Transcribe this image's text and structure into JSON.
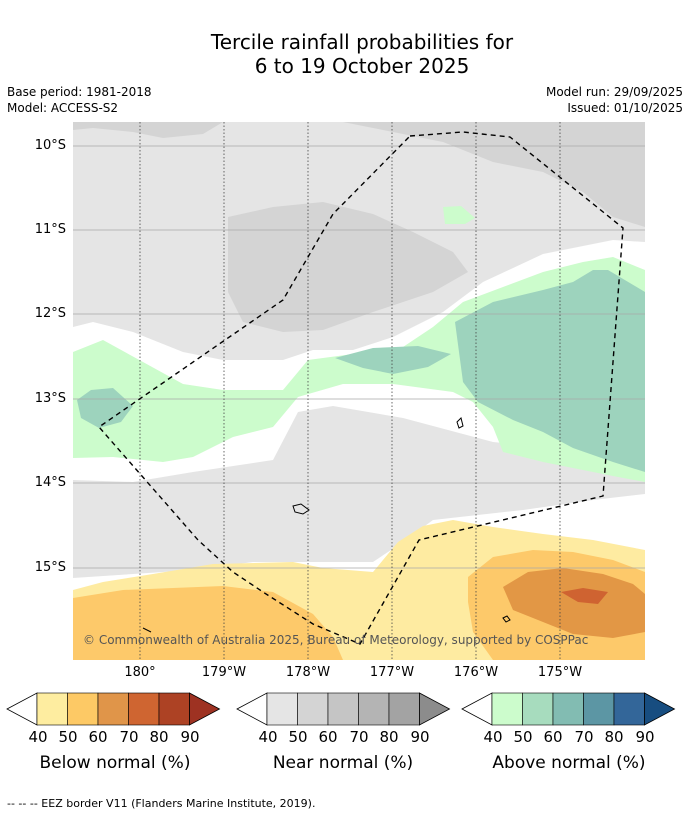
{
  "header": {
    "title_line1": "Tercile rainfall probabilities for",
    "title_line2": "6 to 19 October 2025",
    "base_period": "Base period: 1981-2018",
    "model": "Model: ACCESS-S2",
    "model_run": "Model run: 29/09/2025",
    "issued": "Issued: 01/10/2025"
  },
  "map": {
    "lat_labels": [
      "10°S",
      "11°S",
      "12°S",
      "13°S",
      "14°S",
      "15°S"
    ],
    "lon_labels": [
      "180°",
      "179°W",
      "178°W",
      "177°W",
      "176°W",
      "175°W"
    ],
    "copyright": "© Commonwealth of Australia 2025, Bureau of Meteorology, supported by COSPPac",
    "colors": {
      "near_40": "#e5e5e5",
      "near_50": "#d4d4d4",
      "above_40": "#ccfccc",
      "above_50": "#9dd3bd",
      "below_40": "#feeba1",
      "below_50": "#fdc96a",
      "below_60": "#e29745",
      "below_70": "#cf6331"
    }
  },
  "colorbars": [
    {
      "title": "Below normal (%)",
      "ticks": [
        "40",
        "50",
        "60",
        "70",
        "80",
        "90"
      ],
      "colors": [
        "#feeda0",
        "#fdc965",
        "#e09549",
        "#cf6531",
        "#ad4224",
        "#9e3222"
      ]
    },
    {
      "title": "Near normal (%)",
      "ticks": [
        "40",
        "50",
        "60",
        "70",
        "80",
        "90"
      ],
      "colors": [
        "#e5e5e5",
        "#d4d4d4",
        "#c5c5c5",
        "#b4b4b4",
        "#a3a3a3",
        "#8c8c8c"
      ]
    },
    {
      "title": "Above normal (%)",
      "ticks": [
        "40",
        "50",
        "60",
        "70",
        "80",
        "90"
      ],
      "colors": [
        "#ccfccc",
        "#a7dcbe",
        "#82bcb2",
        "#5c96a4",
        "#336699",
        "#174d80"
      ]
    }
  ],
  "footer": "--  --  -- EEZ border V11 (Flanders Marine Institute, 2019)."
}
